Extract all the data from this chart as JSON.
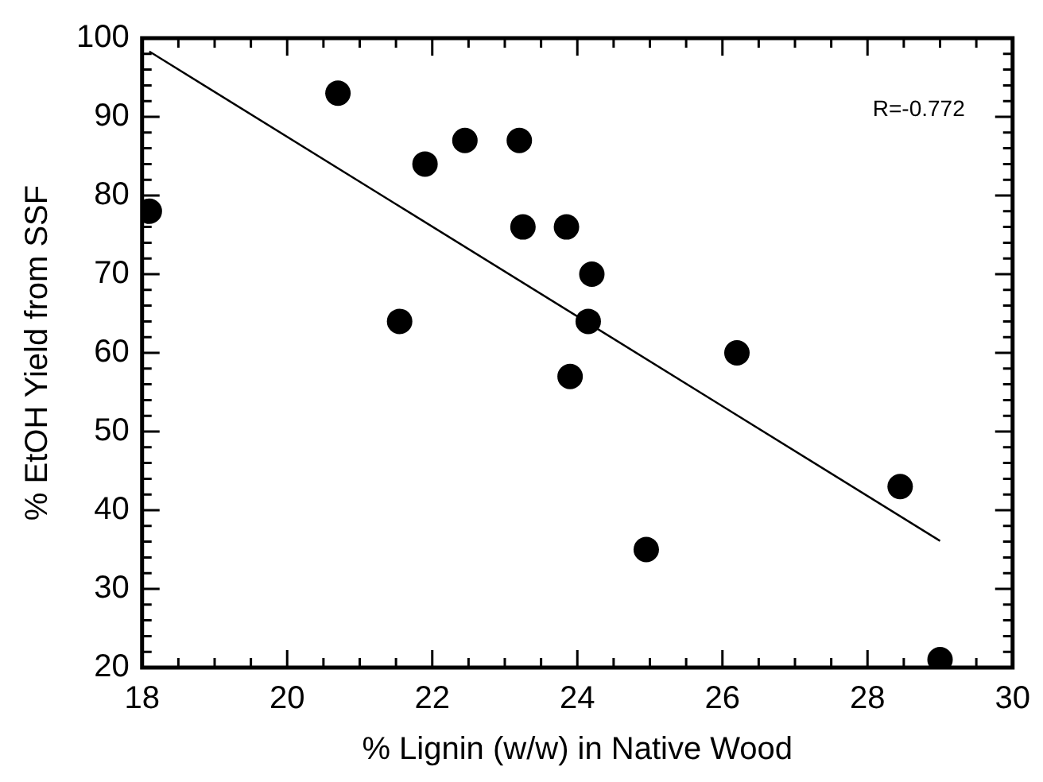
{
  "chart_data": {
    "type": "scatter",
    "xlabel": "% Lignin (w/w) in Native Wood",
    "ylabel": "% EtOH Yield from SSF",
    "xlim": [
      18,
      30
    ],
    "ylim": [
      20,
      100
    ],
    "xticks": [
      18,
      {
        "value": 18.5,
        "label": null
      },
      {
        "value": 19,
        "label": null
      },
      {
        "value": 19.5,
        "label": null
      },
      20,
      {
        "value": 20.5,
        "label": null
      },
      {
        "value": 21,
        "label": null
      },
      {
        "value": 21.5,
        "label": null
      },
      22,
      {
        "value": 22.5,
        "label": null
      },
      {
        "value": 23,
        "label": null
      },
      {
        "value": 23.5,
        "label": null
      },
      24,
      {
        "value": 24.5,
        "label": null
      },
      {
        "value": 25,
        "label": null
      },
      {
        "value": 25.5,
        "label": null
      },
      26,
      {
        "value": 26.5,
        "label": null
      },
      {
        "value": 27,
        "label": null
      },
      {
        "value": 27.5,
        "label": null
      },
      28,
      {
        "value": 28.5,
        "label": null
      },
      {
        "value": 29,
        "label": null
      },
      {
        "value": 29.5,
        "label": null
      },
      30
    ],
    "yticks": [
      20,
      {
        "value": 22,
        "label": null
      },
      {
        "value": 24,
        "label": null
      },
      {
        "value": 26,
        "label": null
      },
      {
        "value": 28,
        "label": null
      },
      30,
      {
        "value": 32,
        "label": null
      },
      {
        "value": 34,
        "label": null
      },
      {
        "value": 36,
        "label": null
      },
      {
        "value": 38,
        "label": null
      },
      40,
      {
        "value": 42,
        "label": null
      },
      {
        "value": 44,
        "label": null
      },
      {
        "value": 46,
        "label": null
      },
      {
        "value": 48,
        "label": null
      },
      50,
      {
        "value": 52,
        "label": null
      },
      {
        "value": 54,
        "label": null
      },
      {
        "value": 56,
        "label": null
      },
      {
        "value": 58,
        "label": null
      },
      60,
      {
        "value": 62,
        "label": null
      },
      {
        "value": 64,
        "label": null
      },
      {
        "value": 66,
        "label": null
      },
      {
        "value": 68,
        "label": null
      },
      70,
      {
        "value": 72,
        "label": null
      },
      {
        "value": 74,
        "label": null
      },
      {
        "value": 76,
        "label": null
      },
      {
        "value": 78,
        "label": null
      },
      80,
      {
        "value": 82,
        "label": null
      },
      {
        "value": 84,
        "label": null
      },
      {
        "value": 86,
        "label": null
      },
      {
        "value": 88,
        "label": null
      },
      90,
      {
        "value": 92,
        "label": null
      },
      {
        "value": 94,
        "label": null
      },
      {
        "value": 96,
        "label": null
      },
      {
        "value": 98,
        "label": null
      },
      100
    ],
    "grid": false,
    "legend": false,
    "marker": "circle",
    "annotations": [
      "R=-0.772"
    ],
    "series": [
      {
        "color": "#000000",
        "x": [
          18.1,
          20.7,
          21.9,
          22.45,
          23.2,
          23.25,
          23.85,
          21.55,
          23.9,
          24.2,
          24.15,
          26.2,
          24.95,
          28.45,
          29.0
        ],
        "values": [
          78,
          93,
          84,
          87,
          87,
          76,
          76,
          64,
          57,
          70,
          64,
          60,
          35,
          43,
          21
        ]
      },
      {
        "type": "line",
        "color": "#000000",
        "line_style": "solid",
        "marker": "none",
        "x": [
          18.1,
          29.0
        ],
        "values": [
          98.3,
          36.1
        ]
      }
    ]
  }
}
